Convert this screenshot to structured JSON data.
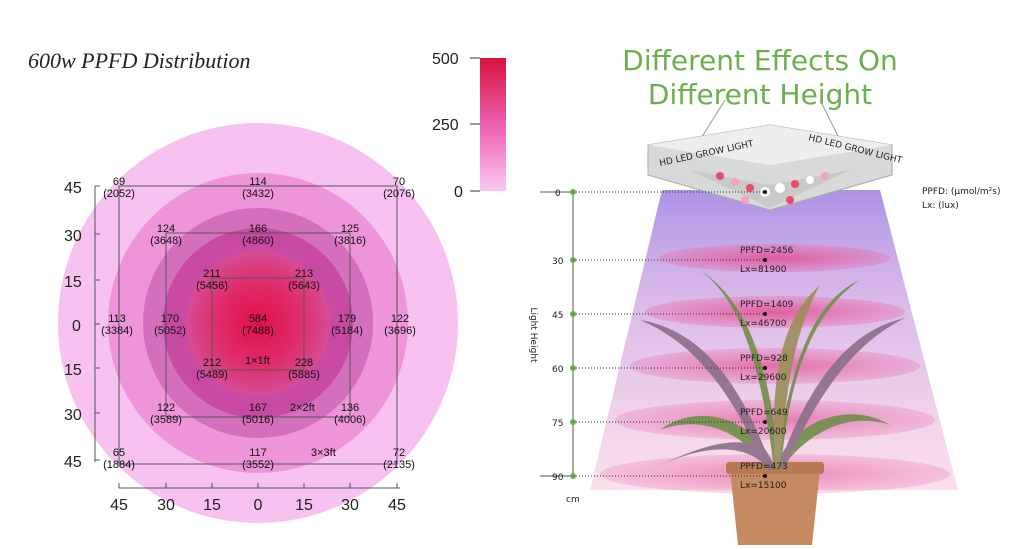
{
  "left": {
    "title": "600w PPFD Distribution",
    "scale": {
      "labels": [
        "500",
        "250",
        "0"
      ]
    },
    "axis_ticks_y": [
      "45",
      "30",
      "15",
      "0",
      "15",
      "30",
      "45"
    ],
    "axis_ticks_x": [
      "45",
      "30",
      "15",
      "0",
      "15",
      "30",
      "45"
    ],
    "area_labels": {
      "a1": "1×1ft",
      "a2": "2×2ft",
      "a3": "3×3ft"
    },
    "points": [
      {
        "ppfd": "69",
        "lux": "(2052)"
      },
      {
        "ppfd": "114",
        "lux": "(3432)"
      },
      {
        "ppfd": "70",
        "lux": "(2076)"
      },
      {
        "ppfd": "124",
        "lux": "(3648)"
      },
      {
        "ppfd": "166",
        "lux": "(4860)"
      },
      {
        "ppfd": "125",
        "lux": "(3816)"
      },
      {
        "ppfd": "211",
        "lux": "(5456)"
      },
      {
        "ppfd": "213",
        "lux": "(5643)"
      },
      {
        "ppfd": "113",
        "lux": "(3384)"
      },
      {
        "ppfd": "170",
        "lux": "(5052)"
      },
      {
        "ppfd": "584",
        "lux": "(7488)"
      },
      {
        "ppfd": "179",
        "lux": "(5184)"
      },
      {
        "ppfd": "122",
        "lux": "(3696)"
      },
      {
        "ppfd": "212",
        "lux": "(5489)"
      },
      {
        "ppfd": "228",
        "lux": "(5885)"
      },
      {
        "ppfd": "122",
        "lux": "(3589)"
      },
      {
        "ppfd": "167",
        "lux": "(5016)"
      },
      {
        "ppfd": "136",
        "lux": "(4006)"
      },
      {
        "ppfd": "65",
        "lux": "(1884)"
      },
      {
        "ppfd": "117",
        "lux": "(3552)"
      },
      {
        "ppfd": "72",
        "lux": "(2135)"
      }
    ]
  },
  "right": {
    "title_line1": "Different Effects On",
    "title_line2": "Different Height",
    "lamp_label": "HD LED GROW LIGHT",
    "legend_ppfd": "PPFD: (µmol/m²s)",
    "legend_lx": "Lx: (lux)",
    "axis_label": "Light Height",
    "unit": "cm",
    "heights": [
      {
        "h": "0",
        "ppfd": "",
        "lx": ""
      },
      {
        "h": "30",
        "ppfd": "PPFD=2456",
        "lx": "Lx=81900"
      },
      {
        "h": "45",
        "ppfd": "PPFD=1409",
        "lx": "Lx=46700"
      },
      {
        "h": "60",
        "ppfd": "PPFD=928",
        "lx": "Lx=29600"
      },
      {
        "h": "75",
        "ppfd": "PPFD=649",
        "lx": "Lx=20600"
      },
      {
        "h": "90",
        "ppfd": "PPFD=473",
        "lx": "Lx=15100"
      }
    ]
  },
  "colors": {
    "title_green": "#6ab04c",
    "ring_outer": "#f7c2ef",
    "ring_2": "#ee94d8",
    "ring_3": "#d96cbd",
    "ring_4": "#cc4aa4",
    "center": "#d8174e"
  }
}
